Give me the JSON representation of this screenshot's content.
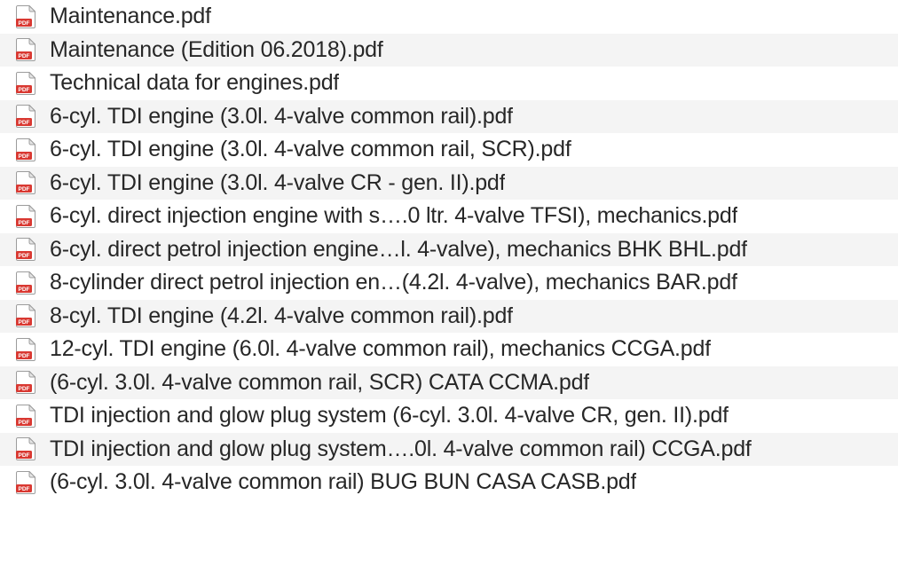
{
  "colors": {
    "row_bg": "#ffffff",
    "row_alt_bg": "#f4f4f4",
    "text": "#272727",
    "icon_border": "#9c9c9c",
    "icon_fill": "#ffffff",
    "icon_badge_bg": "#d93831",
    "icon_badge_text": "#ffffff",
    "icon_fold": "#bfbfbf"
  },
  "icon_badge_label": "PDF",
  "files": [
    {
      "name": "Maintenance.pdf"
    },
    {
      "name": "Maintenance (Edition 06.2018).pdf"
    },
    {
      "name": "Technical data for engines.pdf"
    },
    {
      "name": "6-cyl. TDI engine (3.0l. 4-valve common rail).pdf"
    },
    {
      "name": "6-cyl. TDI engine (3.0l. 4-valve common rail, SCR).pdf"
    },
    {
      "name": "6-cyl. TDI engine (3.0l. 4-valve CR - gen. II).pdf"
    },
    {
      "name": "6-cyl. direct injection engine with s….0 ltr. 4-valve TFSI), mechanics.pdf"
    },
    {
      "name": "6-cyl. direct petrol injection engine…l. 4-valve), mechanics BHK BHL.pdf"
    },
    {
      "name": "8-cylinder direct petrol injection en…(4.2l. 4-valve), mechanics BAR.pdf"
    },
    {
      "name": "8-cyl. TDI engine (4.2l. 4-valve common rail).pdf"
    },
    {
      "name": "12-cyl. TDI engine (6.0l. 4-valve common rail), mechanics CCGA.pdf"
    },
    {
      "name": "(6-cyl. 3.0l. 4-valve common rail, SCR) CATA CCMA.pdf"
    },
    {
      "name": "TDI injection and glow plug system (6-cyl. 3.0l. 4-valve CR, gen. II).pdf"
    },
    {
      "name": "TDI injection and glow plug system….0l. 4-valve common rail) CCGA.pdf"
    },
    {
      "name": "(6-cyl. 3.0l. 4-valve common rail) BUG BUN CASA CASB.pdf"
    }
  ]
}
